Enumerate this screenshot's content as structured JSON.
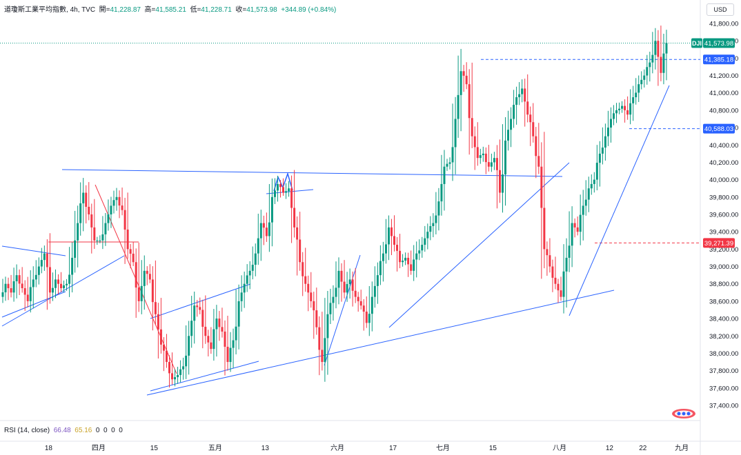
{
  "header": {
    "symbol": "道瓊斯工業平均指數",
    "timeframe": "4h",
    "source": "TVC",
    "open_label": "開",
    "open": "41,228.87",
    "high_label": "高",
    "high": "41,585.21",
    "low_label": "低",
    "low": "41,228.71",
    "close_label": "收",
    "close": "41,573.98",
    "change": "+344.89 (+0.84%)"
  },
  "currency_button": "USD",
  "rsi": {
    "label": "RSI (14, close)",
    "value1": "66.48",
    "value2": "65.16",
    "extra": [
      "0",
      "0",
      "0",
      "0"
    ]
  },
  "colors": {
    "up": "#089981",
    "down": "#f23645",
    "trendline": "#2962ff",
    "red_line": "#f23645",
    "blue_label": "#2962ff",
    "red_label": "#f23645",
    "price_label": "#089981"
  },
  "chart_data": {
    "type": "candlestick",
    "price_axis": {
      "min": 37300,
      "max": 41900,
      "ticks": [
        "41,800.00",
        "41,600.00",
        "41,400.00",
        "41,200.00",
        "41,000.00",
        "40,800.00",
        "40,600.00",
        "40,400.00",
        "40,200.00",
        "40,000.00",
        "39,800.00",
        "39,600.00",
        "39,400.00",
        "39,200.00",
        "39,000.00",
        "38,800.00",
        "38,600.00",
        "38,400.00",
        "38,200.00",
        "38,000.00",
        "37,800.00",
        "37,600.00",
        "37,400.00"
      ]
    },
    "time_axis": [
      {
        "label": "18",
        "i": 8
      },
      {
        "label": "四月",
        "i": 17
      },
      {
        "label": "15",
        "i": 27
      },
      {
        "label": "五月",
        "i": 38
      },
      {
        "label": "13",
        "i": 47
      },
      {
        "label": "六月",
        "i": 60
      },
      {
        "label": "17",
        "i": 70
      },
      {
        "label": "七月",
        "i": 79
      },
      {
        "label": "15",
        "i": 88
      },
      {
        "label": "八月",
        "i": 100
      },
      {
        "label": "12",
        "i": 109
      },
      {
        "label": "22",
        "i": 115
      },
      {
        "label": "九月",
        "i": 122
      }
    ],
    "price_labels": [
      {
        "symbol": "DJI",
        "value": 41573.98,
        "text": "41,573.98",
        "kind": "last"
      },
      {
        "value": 41385.18,
        "text": "41,385.18",
        "kind": "blue"
      },
      {
        "value": 40588.03,
        "text": "40,588.03",
        "kind": "blue"
      },
      {
        "value": 39271.39,
        "text": "39,271.39",
        "kind": "red"
      }
    ],
    "closes": [
      38800,
      38700,
      38900,
      38750,
      38600,
      38850,
      39000,
      39150,
      38700,
      38850,
      38750,
      38800,
      39100,
      39500,
      39850,
      39600,
      39300,
      39300,
      39500,
      39700,
      39800,
      39650,
      39200,
      39050,
      38600,
      38950,
      38850,
      38450,
      38100,
      37900,
      37700,
      37750,
      37850,
      38200,
      38550,
      38500,
      38200,
      38050,
      38400,
      38250,
      37900,
      38150,
      38600,
      38800,
      38950,
      39150,
      39500,
      39350,
      39800,
      39950,
      39850,
      39900,
      39450,
      39050,
      38800,
      38600,
      38300,
      37900,
      38450,
      38650,
      38950,
      38700,
      38850,
      38650,
      38550,
      38350,
      38650,
      38900,
      39150,
      39450,
      39250,
      39050,
      39100,
      38950,
      39150,
      39250,
      39400,
      39500,
      39750,
      40150,
      40200,
      40700,
      41250,
      41100,
      40500,
      40250,
      40300,
      40150,
      40250,
      39850,
      40450,
      40700,
      40950,
      41050,
      40750,
      40500,
      40150,
      39200,
      39000,
      38800,
      38650,
      39100,
      39500,
      39400,
      39700,
      39900,
      40000,
      40300,
      40500,
      40700,
      40800,
      40850,
      40750,
      40950,
      41100,
      41200,
      41350,
      41600,
      41230,
      41574
    ]
  }
}
